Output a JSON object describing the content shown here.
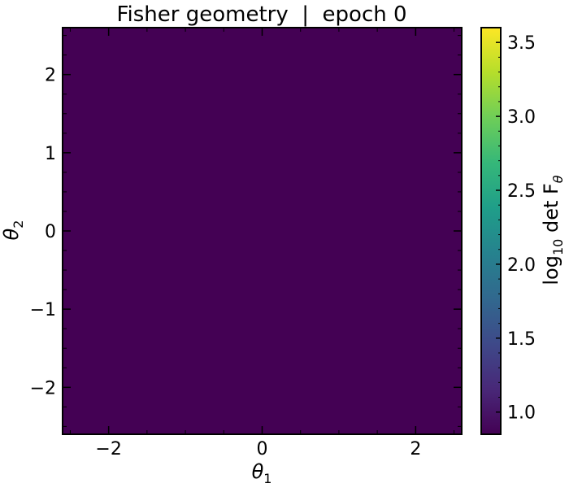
{
  "chart_data": {
    "type": "heatmap",
    "title": "Fisher geometry  |  epoch 0",
    "xlabel": "θ1",
    "ylabel": "θ2",
    "xlim": [
      -2.6,
      2.6
    ],
    "ylim": [
      -2.6,
      2.6
    ],
    "x_ticks": [
      -2,
      0,
      2
    ],
    "y_ticks": [
      -2,
      -1,
      0,
      1,
      2
    ],
    "grid": false,
    "z_values": [
      [
        0.85
      ]
    ],
    "colorbar": {
      "label": "log10 det Fθ",
      "range": [
        0.85,
        3.6
      ],
      "ticks": [
        1.0,
        1.5,
        2.0,
        2.5,
        3.0,
        3.5
      ],
      "tick_labels": [
        "1.0",
        "1.5",
        "2.0",
        "2.5",
        "3.0",
        "3.5"
      ],
      "colormap": "viridis"
    }
  },
  "colors": {
    "field": "#440154",
    "viridis": [
      "#440154",
      "#482878",
      "#3e4989",
      "#31688e",
      "#26828e",
      "#1f9e89",
      "#35b779",
      "#6ece58",
      "#b5de2b",
      "#fde725"
    ]
  }
}
